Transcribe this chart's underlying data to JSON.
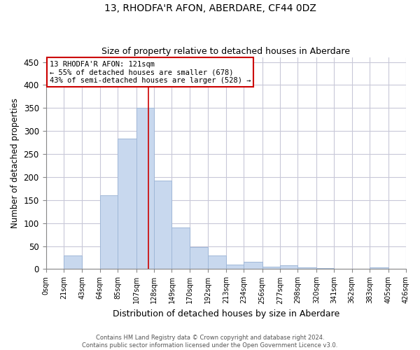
{
  "title1": "13, RHODFA'R AFON, ABERDARE, CF44 0DZ",
  "title2": "Size of property relative to detached houses in Aberdare",
  "xlabel": "Distribution of detached houses by size in Aberdare",
  "ylabel": "Number of detached properties",
  "annotation_line1": "13 RHODFA'R AFON: 121sqm",
  "annotation_line2": "← 55% of detached houses are smaller (678)",
  "annotation_line3": "43% of semi-detached houses are larger (528) →",
  "property_size": 121,
  "footer1": "Contains HM Land Registry data © Crown copyright and database right 2024.",
  "footer2": "Contains public sector information licensed under the Open Government Licence v3.0.",
  "bin_edges": [
    0,
    21,
    43,
    64,
    85,
    107,
    128,
    149,
    170,
    192,
    213,
    234,
    256,
    277,
    298,
    320,
    341,
    362,
    383,
    405,
    426
  ],
  "bar_heights": [
    0,
    30,
    0,
    160,
    283,
    350,
    192,
    90,
    48,
    30,
    10,
    16,
    5,
    8,
    4,
    2,
    0,
    0,
    4,
    0
  ],
  "bar_color": "#c8d8ee",
  "bar_edgecolor": "#a0b8d8",
  "vline_color": "#cc0000",
  "annotation_box_color": "#cc0000",
  "background_color": "#ffffff",
  "grid_color": "#c8c8d8",
  "ylim": [
    0,
    460
  ],
  "yticks": [
    0,
    50,
    100,
    150,
    200,
    250,
    300,
    350,
    400,
    450
  ]
}
